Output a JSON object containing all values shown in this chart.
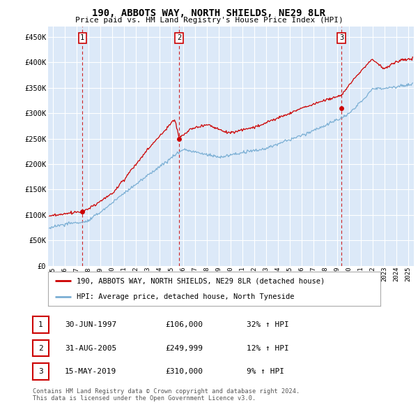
{
  "title": "190, ABBOTS WAY, NORTH SHIELDS, NE29 8LR",
  "subtitle": "Price paid vs. HM Land Registry's House Price Index (HPI)",
  "ylabel_ticks": [
    "£0",
    "£50K",
    "£100K",
    "£150K",
    "£200K",
    "£250K",
    "£300K",
    "£350K",
    "£400K",
    "£450K"
  ],
  "ytick_values": [
    0,
    50000,
    100000,
    150000,
    200000,
    250000,
    300000,
    350000,
    400000,
    450000
  ],
  "ylim": [
    0,
    470000
  ],
  "xlim_start": 1994.6,
  "xlim_end": 2025.5,
  "background_color": "#dce9f8",
  "plot_bg_color": "#dce9f8",
  "grid_color": "#ffffff",
  "red_line_color": "#cc0000",
  "blue_line_color": "#7bafd4",
  "dashed_line_color": "#cc0000",
  "sale_points": [
    {
      "date_num": 1997.5,
      "price": 106000,
      "label": "1"
    },
    {
      "date_num": 2005.67,
      "price": 249999,
      "label": "2"
    },
    {
      "date_num": 2019.38,
      "price": 310000,
      "label": "3"
    }
  ],
  "legend_entries": [
    "190, ABBOTS WAY, NORTH SHIELDS, NE29 8LR (detached house)",
    "HPI: Average price, detached house, North Tyneside"
  ],
  "table_rows": [
    {
      "num": "1",
      "date": "30-JUN-1997",
      "price": "£106,000",
      "hpi": "32% ↑ HPI"
    },
    {
      "num": "2",
      "date": "31-AUG-2005",
      "price": "£249,999",
      "hpi": "12% ↑ HPI"
    },
    {
      "num": "3",
      "date": "15-MAY-2019",
      "price": "£310,000",
      "hpi": "9% ↑ HPI"
    }
  ],
  "footnote": "Contains HM Land Registry data © Crown copyright and database right 2024.\nThis data is licensed under the Open Government Licence v3.0."
}
